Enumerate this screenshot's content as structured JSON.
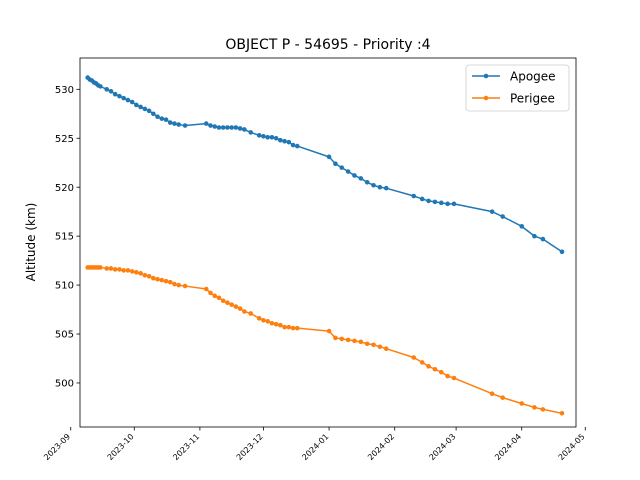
{
  "chart_data": {
    "type": "line",
    "title": "OBJECT P - 54695 - Priority :4",
    "xlabel": "",
    "ylabel": "Altitude (km)",
    "xlim": [
      "2023-09-01",
      "2024-05-01"
    ],
    "ylim": [
      495.5,
      533.2
    ],
    "x_ticks": [
      "2023-09",
      "2023-10",
      "2023-11",
      "2023-12",
      "2024-01",
      "2024-02",
      "2024-03",
      "2024-04",
      "2024-05"
    ],
    "y_ticks": [
      500,
      505,
      510,
      515,
      520,
      525,
      530
    ],
    "grid": false,
    "legend_position": "top-right",
    "series": [
      {
        "name": "Apogee",
        "color": "#1f77b4",
        "points": [
          [
            "2023-09-09",
            531.2
          ],
          [
            "2023-09-10",
            531.0
          ],
          [
            "2023-09-11",
            530.9
          ],
          [
            "2023-09-12",
            530.7
          ],
          [
            "2023-09-13",
            530.6
          ],
          [
            "2023-09-14",
            530.4
          ],
          [
            "2023-09-15",
            530.3
          ],
          [
            "2023-09-18",
            530.0
          ],
          [
            "2023-09-20",
            529.8
          ],
          [
            "2023-09-22",
            529.5
          ],
          [
            "2023-09-24",
            529.3
          ],
          [
            "2023-09-26",
            529.1
          ],
          [
            "2023-09-28",
            528.9
          ],
          [
            "2023-09-30",
            528.7
          ],
          [
            "2023-10-02",
            528.4
          ],
          [
            "2023-10-04",
            528.2
          ],
          [
            "2023-10-06",
            528.0
          ],
          [
            "2023-10-08",
            527.8
          ],
          [
            "2023-10-10",
            527.5
          ],
          [
            "2023-10-12",
            527.2
          ],
          [
            "2023-10-14",
            527.0
          ],
          [
            "2023-10-16",
            526.9
          ],
          [
            "2023-10-18",
            526.6
          ],
          [
            "2023-10-20",
            526.5
          ],
          [
            "2023-10-22",
            526.4
          ],
          [
            "2023-10-25",
            526.3
          ],
          [
            "2023-11-04",
            526.5
          ],
          [
            "2023-11-06",
            526.3
          ],
          [
            "2023-11-08",
            526.2
          ],
          [
            "2023-11-10",
            526.1
          ],
          [
            "2023-11-12",
            526.1
          ],
          [
            "2023-11-14",
            526.1
          ],
          [
            "2023-11-16",
            526.1
          ],
          [
            "2023-11-18",
            526.1
          ],
          [
            "2023-11-20",
            526.0
          ],
          [
            "2023-11-22",
            525.9
          ],
          [
            "2023-11-25",
            525.6
          ],
          [
            "2023-11-29",
            525.3
          ],
          [
            "2023-12-01",
            525.2
          ],
          [
            "2023-12-03",
            525.1
          ],
          [
            "2023-12-05",
            525.1
          ],
          [
            "2023-12-07",
            525.0
          ],
          [
            "2023-12-09",
            524.8
          ],
          [
            "2023-12-11",
            524.7
          ],
          [
            "2023-12-13",
            524.6
          ],
          [
            "2023-12-15",
            524.3
          ],
          [
            "2023-12-17",
            524.2
          ],
          [
            "2024-01-01",
            523.1
          ],
          [
            "2024-01-04",
            522.4
          ],
          [
            "2024-01-07",
            522.0
          ],
          [
            "2024-01-10",
            521.6
          ],
          [
            "2024-01-13",
            521.2
          ],
          [
            "2024-01-16",
            520.9
          ],
          [
            "2024-01-19",
            520.5
          ],
          [
            "2024-01-22",
            520.2
          ],
          [
            "2024-01-25",
            520.0
          ],
          [
            "2024-01-28",
            519.9
          ],
          [
            "2024-02-10",
            519.1
          ],
          [
            "2024-02-14",
            518.8
          ],
          [
            "2024-02-17",
            518.6
          ],
          [
            "2024-02-20",
            518.5
          ],
          [
            "2024-02-23",
            518.4
          ],
          [
            "2024-02-26",
            518.3
          ],
          [
            "2024-02-29",
            518.3
          ],
          [
            "2024-03-18",
            517.5
          ],
          [
            "2024-03-23",
            517.0
          ],
          [
            "2024-04-01",
            516.0
          ],
          [
            "2024-04-07",
            515.0
          ],
          [
            "2024-04-11",
            514.7
          ],
          [
            "2024-04-20",
            513.4
          ]
        ]
      },
      {
        "name": "Perigee",
        "color": "#ff7f0e",
        "points": [
          [
            "2023-09-09",
            511.8
          ],
          [
            "2023-09-10",
            511.8
          ],
          [
            "2023-09-11",
            511.8
          ],
          [
            "2023-09-12",
            511.8
          ],
          [
            "2023-09-13",
            511.8
          ],
          [
            "2023-09-14",
            511.8
          ],
          [
            "2023-09-15",
            511.8
          ],
          [
            "2023-09-18",
            511.7
          ],
          [
            "2023-09-20",
            511.7
          ],
          [
            "2023-09-22",
            511.6
          ],
          [
            "2023-09-24",
            511.6
          ],
          [
            "2023-09-26",
            511.5
          ],
          [
            "2023-09-28",
            511.5
          ],
          [
            "2023-09-30",
            511.4
          ],
          [
            "2023-10-02",
            511.3
          ],
          [
            "2023-10-04",
            511.2
          ],
          [
            "2023-10-06",
            511.0
          ],
          [
            "2023-10-08",
            510.9
          ],
          [
            "2023-10-10",
            510.7
          ],
          [
            "2023-10-12",
            510.6
          ],
          [
            "2023-10-14",
            510.5
          ],
          [
            "2023-10-16",
            510.4
          ],
          [
            "2023-10-18",
            510.3
          ],
          [
            "2023-10-20",
            510.1
          ],
          [
            "2023-10-22",
            510.0
          ],
          [
            "2023-10-25",
            509.9
          ],
          [
            "2023-11-04",
            509.6
          ],
          [
            "2023-11-06",
            509.2
          ],
          [
            "2023-11-08",
            508.9
          ],
          [
            "2023-11-10",
            508.7
          ],
          [
            "2023-11-12",
            508.4
          ],
          [
            "2023-11-14",
            508.2
          ],
          [
            "2023-11-16",
            508.0
          ],
          [
            "2023-11-18",
            507.8
          ],
          [
            "2023-11-20",
            507.6
          ],
          [
            "2023-11-22",
            507.3
          ],
          [
            "2023-11-25",
            507.1
          ],
          [
            "2023-11-29",
            506.6
          ],
          [
            "2023-12-01",
            506.4
          ],
          [
            "2023-12-03",
            506.3
          ],
          [
            "2023-12-05",
            506.1
          ],
          [
            "2023-12-07",
            506.0
          ],
          [
            "2023-12-09",
            505.9
          ],
          [
            "2023-12-11",
            505.7
          ],
          [
            "2023-12-13",
            505.7
          ],
          [
            "2023-12-15",
            505.6
          ],
          [
            "2023-12-17",
            505.6
          ],
          [
            "2024-01-01",
            505.3
          ],
          [
            "2024-01-04",
            504.6
          ],
          [
            "2024-01-07",
            504.5
          ],
          [
            "2024-01-10",
            504.4
          ],
          [
            "2024-01-13",
            504.3
          ],
          [
            "2024-01-16",
            504.2
          ],
          [
            "2024-01-19",
            504.0
          ],
          [
            "2024-01-22",
            503.9
          ],
          [
            "2024-01-25",
            503.7
          ],
          [
            "2024-01-28",
            503.5
          ],
          [
            "2024-02-10",
            502.6
          ],
          [
            "2024-02-14",
            502.1
          ],
          [
            "2024-02-17",
            501.7
          ],
          [
            "2024-02-20",
            501.4
          ],
          [
            "2024-02-23",
            501.1
          ],
          [
            "2024-02-26",
            500.7
          ],
          [
            "2024-02-29",
            500.5
          ],
          [
            "2024-03-18",
            498.9
          ],
          [
            "2024-03-23",
            498.5
          ],
          [
            "2024-04-01",
            497.9
          ],
          [
            "2024-04-07",
            497.5
          ],
          [
            "2024-04-11",
            497.3
          ],
          [
            "2024-04-20",
            496.9
          ]
        ]
      }
    ]
  }
}
